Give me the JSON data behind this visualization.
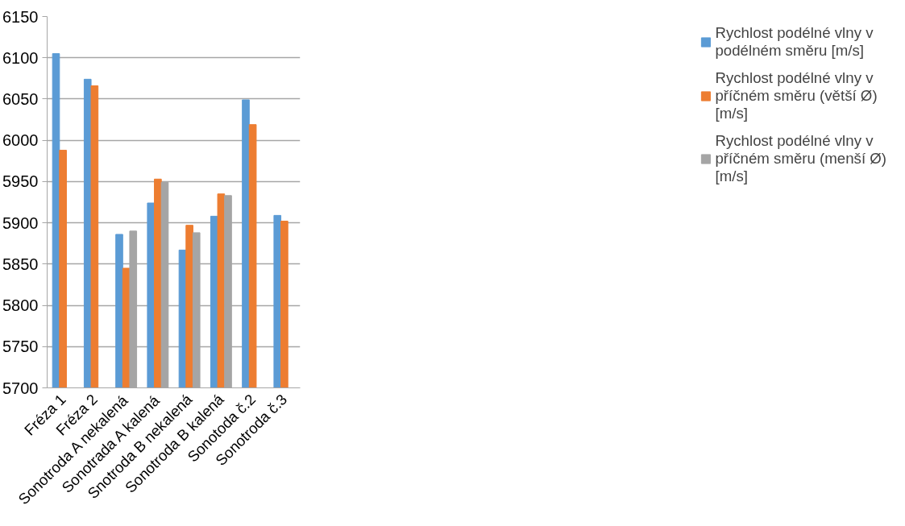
{
  "chart_data": {
    "type": "bar",
    "categories": [
      "Fréza 1",
      "Fréza 2",
      "Sonotroda A nekalená",
      "Sonotrada A kalená",
      "Snotroda B nekalená",
      "Sonotroda B kalená",
      "Sonotoda č.2",
      "Sonotroda č.3"
    ],
    "series": [
      {
        "name": "Rychlost podélné vlny v podélném směru [m/s]",
        "color": "#5b9bd5",
        "values": [
          6105,
          6074,
          5886,
          5924,
          5867,
          5908,
          6049,
          5909
        ]
      },
      {
        "name": "Rychlost podélné vlny v příčném směru (větší Ø) [m/s]",
        "color": "#ed7d31",
        "values": [
          5988,
          6066,
          5845,
          5953,
          5897,
          5935,
          6019,
          5902
        ]
      },
      {
        "name": "Rychlost podélné vlny v příčném směru (menší Ø) [m/s]",
        "color": "#a5a5a5",
        "values": [
          null,
          null,
          5890,
          5949,
          5888,
          5933,
          null,
          null
        ]
      }
    ],
    "ylim": [
      5700,
      6150
    ],
    "yticks": [
      5700,
      5750,
      5800,
      5850,
      5900,
      5950,
      6000,
      6050,
      6100,
      6150
    ],
    "grid": "y",
    "legend": "right"
  }
}
